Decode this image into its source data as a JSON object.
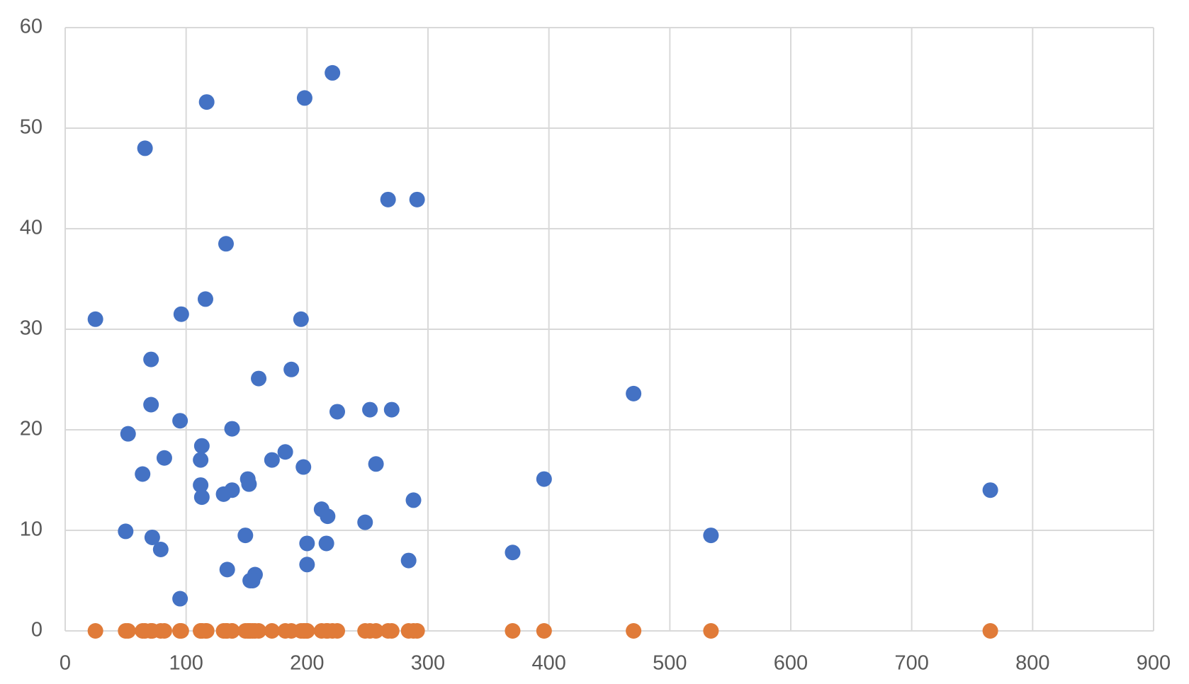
{
  "chart_data": {
    "type": "scatter",
    "x": [
      25,
      66,
      117,
      198,
      221,
      267,
      291,
      133,
      116,
      96,
      195,
      71,
      187,
      160,
      470,
      71,
      225,
      252,
      270,
      95,
      138,
      52,
      113,
      182,
      82,
      112,
      171,
      257,
      197,
      64,
      151,
      396,
      152,
      112,
      138,
      131,
      765,
      113,
      288,
      212,
      217,
      248,
      50,
      149,
      534,
      72,
      200,
      216,
      79,
      370,
      284,
      200,
      134,
      157,
      153,
      155,
      95
    ],
    "series": [
      {
        "color": "#4472c4",
        "values": [
          31,
          48,
          52.6,
          53,
          55.5,
          42.9,
          42.9,
          38.5,
          33,
          31.5,
          31,
          27,
          26,
          25.1,
          23.6,
          22.5,
          21.8,
          22,
          22,
          20.9,
          20.1,
          19.6,
          18.4,
          17.8,
          17.2,
          17,
          17,
          16.6,
          16.3,
          15.6,
          15.1,
          15.1,
          14.6,
          14.5,
          14,
          13.6,
          14,
          13.3,
          13,
          12.1,
          11.4,
          10.8,
          9.9,
          9.5,
          9.5,
          9.3,
          8.7,
          8.7,
          8.1,
          7.8,
          7,
          6.6,
          6.1,
          5.6,
          5,
          5,
          3.2
        ]
      },
      {
        "color": "#e07b39",
        "values": [
          0,
          0,
          0,
          0,
          0,
          0,
          0,
          0,
          0,
          0,
          0,
          0,
          0,
          0,
          0,
          0,
          0,
          0,
          0,
          0,
          0,
          0,
          0,
          0,
          0,
          0,
          0,
          0,
          0,
          0,
          0,
          0,
          0,
          0,
          0,
          0,
          0,
          0,
          0,
          0,
          0,
          0,
          0,
          0,
          0,
          0,
          0,
          0,
          0,
          0,
          0,
          0,
          0,
          0,
          0,
          0,
          0
        ]
      }
    ],
    "xlim": [
      0,
      900
    ],
    "xticks": [
      0,
      100,
      200,
      300,
      400,
      500,
      600,
      700,
      800,
      900
    ],
    "ylim": [
      0,
      60
    ],
    "yticks": [
      0,
      10,
      20,
      30,
      40,
      50,
      60
    ],
    "grid": true
  }
}
